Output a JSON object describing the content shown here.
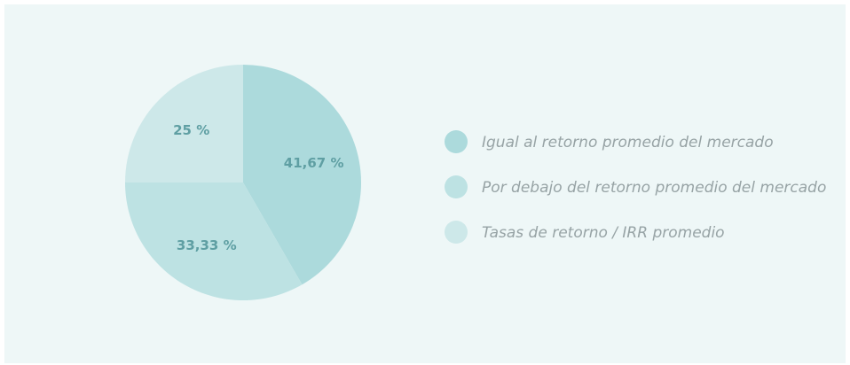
{
  "chart_data": {
    "type": "pie",
    "categories": [
      "Igual al retorno promedio del mercado",
      "Por debajo del retorno promedio del mercado",
      "Tasas de retorno / IRR promedio"
    ],
    "values": [
      41.67,
      33.33,
      25
    ],
    "value_labels": [
      "41,67 %",
      "33,33 %",
      "25 %"
    ],
    "colors": [
      "#acdadc",
      "#bde2e3",
      "#cde8e9"
    ]
  }
}
